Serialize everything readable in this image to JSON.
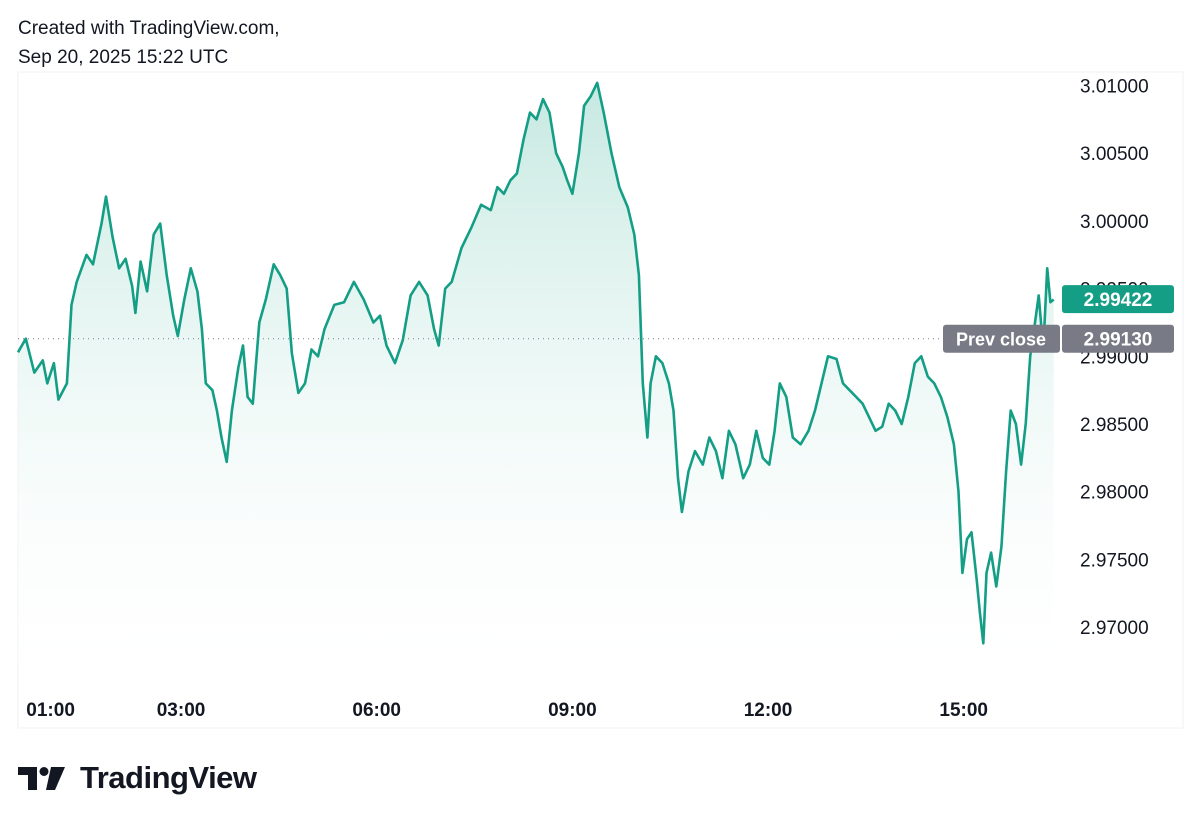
{
  "header": {
    "line1": "Created with TradingView.com,",
    "line2": "Sep 20, 2025 15:22 UTC"
  },
  "brand": {
    "name": "TradingView"
  },
  "colors": {
    "line": "#149e85",
    "fill_top": "#bfe6dd",
    "fill_bottom": "#ffffff",
    "price_badge": "#149e85",
    "prev_close_badge": "#787b86",
    "text": "#131722"
  },
  "chart_data": {
    "type": "area",
    "x_tick_labels": [
      "01:00",
      "03:00",
      "06:00",
      "09:00",
      "12:00",
      "15:00"
    ],
    "x_tick_hours": [
      1,
      3,
      6,
      9,
      12,
      15
    ],
    "x_range_hours": [
      0.5,
      16.4
    ],
    "y_tick_labels": [
      "3.01000",
      "3.00500",
      "3.00000",
      "2.99500",
      "2.99000",
      "2.98500",
      "2.98000",
      "2.97500",
      "2.97000"
    ],
    "ylim": [
      2.9672,
      3.011
    ],
    "last_price": {
      "label": "2.99422",
      "value": 2.99422
    },
    "prev_close": {
      "label": "Prev close",
      "value_label": "2.99130",
      "value": 2.9913
    },
    "series": [
      {
        "points": [
          [
            0.5,
            2.9903
          ],
          [
            0.62,
            2.9913
          ],
          [
            0.75,
            2.9888
          ],
          [
            0.88,
            2.9897
          ],
          [
            0.95,
            2.988
          ],
          [
            1.05,
            2.9895
          ],
          [
            1.12,
            2.9868
          ],
          [
            1.25,
            2.988
          ],
          [
            1.32,
            2.9938
          ],
          [
            1.4,
            2.9955
          ],
          [
            1.55,
            2.9975
          ],
          [
            1.65,
            2.9968
          ],
          [
            1.78,
            2.9998
          ],
          [
            1.85,
            3.0018
          ],
          [
            1.95,
            2.9988
          ],
          [
            2.05,
            2.9965
          ],
          [
            2.15,
            2.9972
          ],
          [
            2.25,
            2.9952
          ],
          [
            2.3,
            2.9932
          ],
          [
            2.38,
            2.997
          ],
          [
            2.48,
            2.9948
          ],
          [
            2.58,
            2.999
          ],
          [
            2.68,
            2.9998
          ],
          [
            2.78,
            2.996
          ],
          [
            2.88,
            2.993
          ],
          [
            2.95,
            2.9915
          ],
          [
            3.05,
            2.9942
          ],
          [
            3.15,
            2.9965
          ],
          [
            3.25,
            2.9948
          ],
          [
            3.32,
            2.992
          ],
          [
            3.38,
            2.988
          ],
          [
            3.48,
            2.9875
          ],
          [
            3.55,
            2.986
          ],
          [
            3.62,
            2.984
          ],
          [
            3.7,
            2.9822
          ],
          [
            3.78,
            2.986
          ],
          [
            3.88,
            2.9892
          ],
          [
            3.95,
            2.9908
          ],
          [
            4.02,
            2.987
          ],
          [
            4.1,
            2.9865
          ],
          [
            4.2,
            2.9925
          ],
          [
            4.3,
            2.9942
          ],
          [
            4.42,
            2.9968
          ],
          [
            4.52,
            2.996
          ],
          [
            4.62,
            2.995
          ],
          [
            4.7,
            2.9902
          ],
          [
            4.8,
            2.9873
          ],
          [
            4.9,
            2.988
          ],
          [
            5.0,
            2.9905
          ],
          [
            5.1,
            2.99
          ],
          [
            5.2,
            2.992
          ],
          [
            5.35,
            2.9938
          ],
          [
            5.5,
            2.994
          ],
          [
            5.65,
            2.9955
          ],
          [
            5.8,
            2.9942
          ],
          [
            5.95,
            2.9925
          ],
          [
            6.05,
            2.993
          ],
          [
            6.15,
            2.9908
          ],
          [
            6.28,
            2.9895
          ],
          [
            6.4,
            2.9912
          ],
          [
            6.52,
            2.9945
          ],
          [
            6.65,
            2.9955
          ],
          [
            6.78,
            2.9945
          ],
          [
            6.88,
            2.992
          ],
          [
            6.95,
            2.9908
          ],
          [
            7.05,
            2.995
          ],
          [
            7.15,
            2.9955
          ],
          [
            7.3,
            2.998
          ],
          [
            7.45,
            2.9995
          ],
          [
            7.6,
            3.0012
          ],
          [
            7.75,
            3.0008
          ],
          [
            7.85,
            3.0025
          ],
          [
            7.95,
            3.002
          ],
          [
            8.05,
            3.003
          ],
          [
            8.15,
            3.0035
          ],
          [
            8.25,
            3.006
          ],
          [
            8.35,
            3.008
          ],
          [
            8.45,
            3.0075
          ],
          [
            8.55,
            3.009
          ],
          [
            8.65,
            3.008
          ],
          [
            8.75,
            3.005
          ],
          [
            8.85,
            3.004
          ],
          [
            8.92,
            3.003
          ],
          [
            9.0,
            3.002
          ],
          [
            9.1,
            3.005
          ],
          [
            9.18,
            3.0085
          ],
          [
            9.28,
            3.0092
          ],
          [
            9.38,
            3.0102
          ],
          [
            9.48,
            3.008
          ],
          [
            9.6,
            3.005
          ],
          [
            9.72,
            3.0025
          ],
          [
            9.85,
            3.001
          ],
          [
            9.95,
            2.999
          ],
          [
            10.02,
            2.996
          ],
          [
            10.08,
            2.988
          ],
          [
            10.15,
            2.984
          ],
          [
            10.2,
            2.988
          ],
          [
            10.28,
            2.99
          ],
          [
            10.38,
            2.9895
          ],
          [
            10.48,
            2.988
          ],
          [
            10.55,
            2.986
          ],
          [
            10.62,
            2.981
          ],
          [
            10.68,
            2.9785
          ],
          [
            10.78,
            2.9815
          ],
          [
            10.88,
            2.983
          ],
          [
            11.0,
            2.982
          ],
          [
            11.1,
            2.984
          ],
          [
            11.2,
            2.983
          ],
          [
            11.3,
            2.981
          ],
          [
            11.4,
            2.9845
          ],
          [
            11.5,
            2.9835
          ],
          [
            11.62,
            2.981
          ],
          [
            11.72,
            2.982
          ],
          [
            11.82,
            2.9845
          ],
          [
            11.92,
            2.9825
          ],
          [
            12.02,
            2.982
          ],
          [
            12.1,
            2.9845
          ],
          [
            12.18,
            2.988
          ],
          [
            12.28,
            2.987
          ],
          [
            12.38,
            2.984
          ],
          [
            12.5,
            2.9835
          ],
          [
            12.62,
            2.9845
          ],
          [
            12.72,
            2.986
          ],
          [
            12.82,
            2.988
          ],
          [
            12.92,
            2.99
          ],
          [
            13.05,
            2.9898
          ],
          [
            13.15,
            2.988
          ],
          [
            13.25,
            2.9875
          ],
          [
            13.35,
            2.987
          ],
          [
            13.45,
            2.9865
          ],
          [
            13.55,
            2.9855
          ],
          [
            13.65,
            2.9845
          ],
          [
            13.75,
            2.9848
          ],
          [
            13.85,
            2.9865
          ],
          [
            13.95,
            2.986
          ],
          [
            14.05,
            2.985
          ],
          [
            14.15,
            2.987
          ],
          [
            14.25,
            2.9895
          ],
          [
            14.35,
            2.99
          ],
          [
            14.45,
            2.9885
          ],
          [
            14.55,
            2.988
          ],
          [
            14.65,
            2.987
          ],
          [
            14.75,
            2.9855
          ],
          [
            14.85,
            2.9835
          ],
          [
            14.92,
            2.98
          ],
          [
            14.98,
            2.974
          ],
          [
            15.05,
            2.9765
          ],
          [
            15.12,
            2.977
          ],
          [
            15.2,
            2.9735
          ],
          [
            15.25,
            2.971
          ],
          [
            15.3,
            2.9688
          ],
          [
            15.35,
            2.974
          ],
          [
            15.42,
            2.9755
          ],
          [
            15.5,
            2.973
          ],
          [
            15.58,
            2.976
          ],
          [
            15.65,
            2.9815
          ],
          [
            15.72,
            2.986
          ],
          [
            15.8,
            2.985
          ],
          [
            15.88,
            2.982
          ],
          [
            15.95,
            2.985
          ],
          [
            16.02,
            2.99
          ],
          [
            16.08,
            2.992
          ],
          [
            16.15,
            2.9945
          ],
          [
            16.22,
            2.9905
          ],
          [
            16.28,
            2.9965
          ],
          [
            16.33,
            2.994
          ],
          [
            16.38,
            2.9942
          ]
        ]
      }
    ]
  }
}
